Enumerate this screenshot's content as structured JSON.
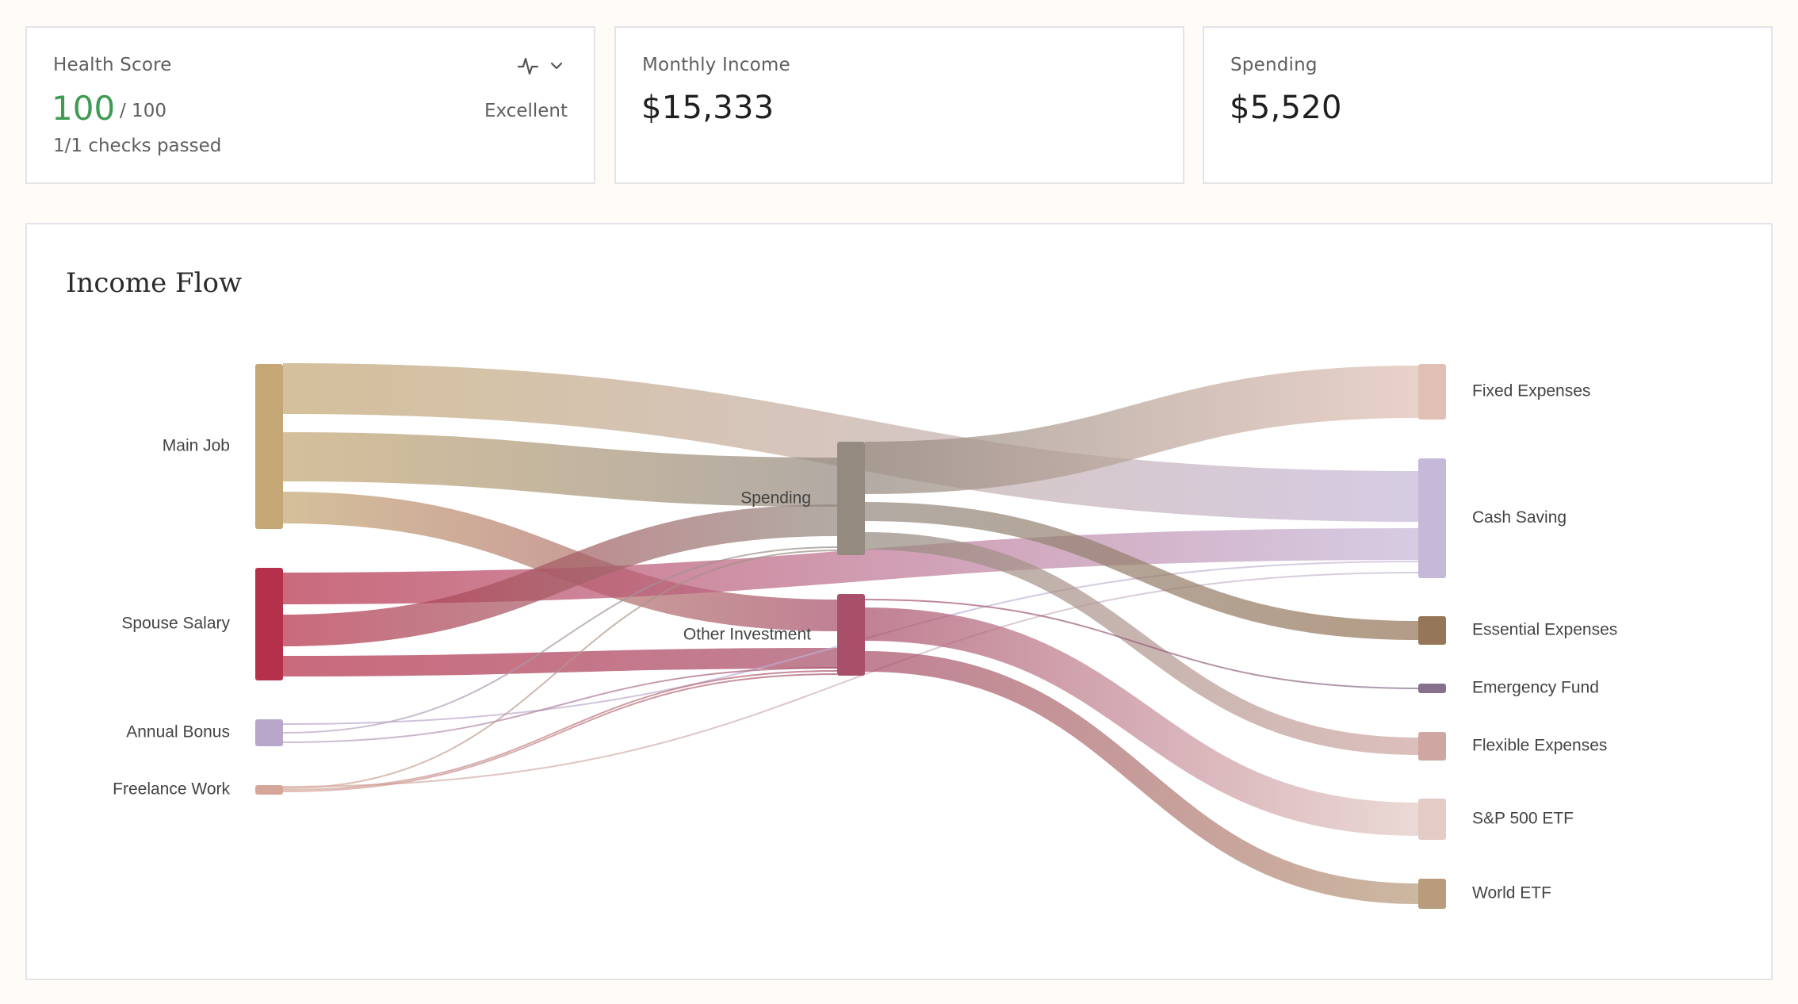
{
  "cards": {
    "health": {
      "label": "Health Score",
      "score": "100",
      "max": "/ 100",
      "status": "Excellent",
      "checks": "1/1 checks passed",
      "icons": [
        "activity-icon",
        "chevron-down-icon"
      ],
      "accent": "#3f9a52"
    },
    "income": {
      "label": "Monthly Income",
      "value": "$15,333"
    },
    "spending": {
      "label": "Spending",
      "value": "$5,520"
    }
  },
  "income_flow": {
    "title": "Income Flow",
    "sources": [
      {
        "id": "main",
        "label": "Main Job",
        "color": "#c4a774"
      },
      {
        "id": "spouse",
        "label": "Spouse Salary",
        "color": "#b5304a"
      },
      {
        "id": "bonus",
        "label": "Annual Bonus",
        "color": "#b8a6cb"
      },
      {
        "id": "freelance",
        "label": "Freelance Work",
        "color": "#d4a799"
      }
    ],
    "middle": [
      {
        "id": "spending",
        "label": "Spending",
        "color": "#958a80"
      },
      {
        "id": "otherinv",
        "label": "Other Investment",
        "color": "#a8506a"
      }
    ],
    "targets": [
      {
        "id": "fixed",
        "label": "Fixed Expenses",
        "color": "#e0c0b4"
      },
      {
        "id": "cash",
        "label": "Cash Saving",
        "color": "#c6b8d8"
      },
      {
        "id": "essential",
        "label": "Essential Expenses",
        "color": "#967658"
      },
      {
        "id": "emergency",
        "label": "Emergency Fund",
        "color": "#86708c"
      },
      {
        "id": "flexible",
        "label": "Flexible Expenses",
        "color": "#cfa6a2"
      },
      {
        "id": "sp500",
        "label": "S&P 500 ETF",
        "color": "#e3cbc6"
      },
      {
        "id": "world",
        "label": "World ETF",
        "color": "#b89c7c"
      }
    ]
  }
}
